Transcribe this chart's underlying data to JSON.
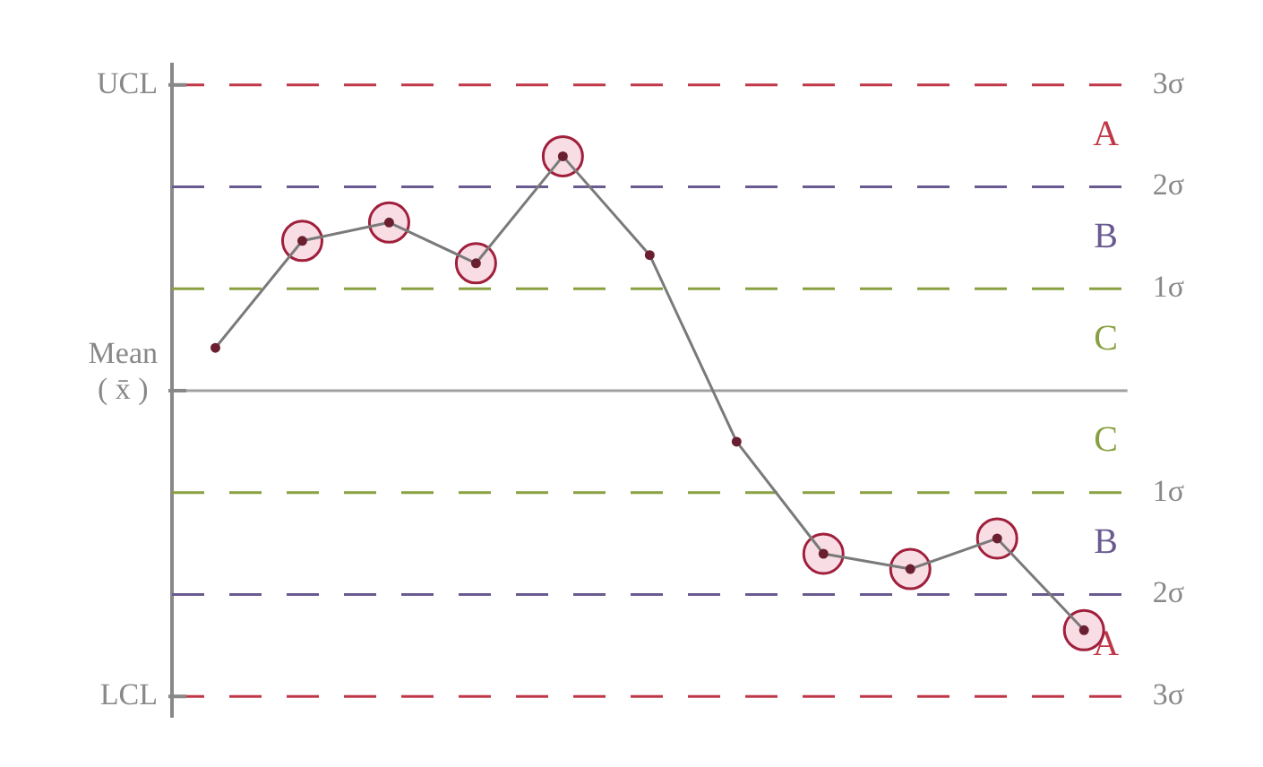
{
  "chart_data": {
    "type": "line",
    "categories": [
      null,
      null,
      null,
      null,
      null,
      null,
      null,
      null,
      null,
      null,
      null
    ],
    "series": [
      {
        "color": "#7a7a7a",
        "marker": "circle",
        "values": [
          0.42,
          1.47,
          1.65,
          1.25,
          2.3,
          1.33,
          -0.5,
          -1.6,
          -1.75,
          -1.45,
          -2.35
        ]
      },
      {
        "type": "scatter",
        "color": "#a0203c",
        "marker": "circle",
        "values": [
          null,
          1.47,
          1.65,
          1.25,
          2.3,
          null,
          null,
          -1.6,
          -1.75,
          -1.45,
          -2.35
        ]
      }
    ],
    "ylim": [
      -3.2,
      3.2
    ],
    "yticks": [
      {
        "value": 3,
        "label": "3σ"
      },
      {
        "value": 2,
        "label": "2σ"
      },
      {
        "value": 1,
        "label": "1σ"
      },
      {
        "value": -1,
        "label": "1σ"
      },
      {
        "value": -2,
        "label": "2σ"
      },
      {
        "value": -3,
        "label": "3σ"
      }
    ],
    "ref_lines": [
      {
        "axis": "y",
        "value": 3,
        "label": "UCL",
        "color": "#c03848",
        "line_style": "dashed"
      },
      {
        "axis": "y",
        "value": 2,
        "color": "#6a5a90",
        "line_style": "dashed"
      },
      {
        "axis": "y",
        "value": 1,
        "color": "#88a040",
        "line_style": "dashed"
      },
      {
        "axis": "y",
        "value": 0,
        "label": "Mean\n( x̄ )",
        "color": "#a0a0a0",
        "line_style": "solid"
      },
      {
        "axis": "y",
        "value": -1,
        "color": "#88a040",
        "line_style": "dashed"
      },
      {
        "axis": "y",
        "value": -2,
        "color": "#6a5a90",
        "line_style": "dashed"
      },
      {
        "axis": "y",
        "value": -3,
        "label": "LCL",
        "color": "#c03848",
        "line_style": "dashed"
      }
    ],
    "annotations": [
      "A",
      "B",
      "C",
      "C",
      "B",
      "A"
    ],
    "grid": false,
    "legend": false
  }
}
